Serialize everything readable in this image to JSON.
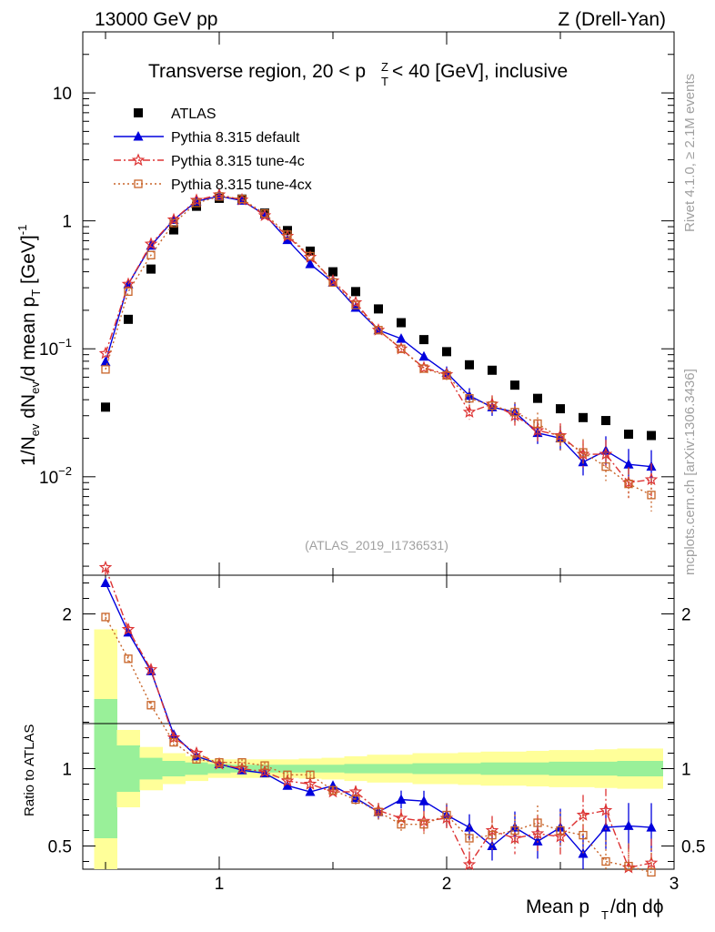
{
  "header": {
    "energy": "13000 GeV pp",
    "process": "Z (Drell-Yan)",
    "side_top": "Rivet 4.1.0, ≥ 2.1M events",
    "side_bottom": "mcplots.cern.ch [arXiv:1306.3436]",
    "analysis_id": "(ATLAS_2019_I1736531)"
  },
  "chart_data": [
    {
      "type": "line",
      "panel": "main",
      "title": "Transverse region, 20 < p_T^Z < 40 [GeV], inclusive",
      "ylabel": "1/N_ev dN_ev/d mean p_T [GeV]^-1",
      "yscale": "log",
      "xlim": [
        0.4,
        3.0
      ],
      "ylim": [
        0.0017,
        30
      ],
      "x_ticks": [
        "1",
        "2",
        "3"
      ],
      "y_ticks": [
        "10^-2",
        "10^-1",
        "1",
        "10"
      ],
      "x": [
        0.5,
        0.6,
        0.7,
        0.8,
        0.9,
        1.0,
        1.1,
        1.2,
        1.3,
        1.4,
        1.5,
        1.6,
        1.7,
        1.8,
        1.9,
        2.0,
        2.1,
        2.2,
        2.3,
        2.4,
        2.5,
        2.6,
        2.7,
        2.8,
        2.9
      ],
      "series": [
        {
          "name": "ATLAS",
          "color": "#000000",
          "marker": "square",
          "values": [
            0.035,
            0.17,
            0.42,
            0.85,
            1.3,
            1.5,
            1.48,
            1.15,
            0.84,
            0.58,
            0.4,
            0.28,
            0.205,
            0.16,
            0.118,
            0.095,
            0.075,
            0.068,
            0.052,
            0.041,
            0.034,
            0.029,
            0.0275,
            0.0215,
            0.021
          ]
        },
        {
          "name": "Pythia 8.315 default",
          "color": "#0000dd",
          "marker": "triangle",
          "dash": "",
          "values": [
            0.079,
            0.32,
            0.64,
            1.02,
            1.42,
            1.56,
            1.44,
            1.12,
            0.71,
            0.46,
            0.33,
            0.21,
            0.14,
            0.12,
            0.087,
            0.065,
            0.043,
            0.035,
            0.032,
            0.022,
            0.02,
            0.013,
            0.016,
            0.0125,
            0.012
          ]
        },
        {
          "name": "Pythia 8.315 tune-4c",
          "color": "#dd3333",
          "marker": "star",
          "dash": "8,3,2,3",
          "values": [
            0.092,
            0.32,
            0.66,
            1.02,
            1.45,
            1.6,
            1.46,
            1.1,
            0.76,
            0.52,
            0.34,
            0.23,
            0.14,
            0.1,
            0.071,
            0.063,
            0.032,
            0.037,
            0.03,
            0.023,
            0.021,
            0.015,
            0.015,
            0.009,
            0.0095
          ]
        },
        {
          "name": "Pythia 8.315 tune-4cx",
          "color": "#c86428",
          "marker": "open-square",
          "dash": "2,3",
          "values": [
            0.069,
            0.28,
            0.54,
            0.96,
            1.38,
            1.55,
            1.48,
            1.14,
            0.78,
            0.53,
            0.33,
            0.22,
            0.14,
            0.1,
            0.07,
            0.062,
            0.041,
            0.036,
            0.032,
            0.026,
            0.02,
            0.0155,
            0.012,
            0.0088,
            0.0072
          ]
        }
      ]
    },
    {
      "type": "line",
      "panel": "ratio",
      "xlabel": "Mean p_T/dη dφ",
      "ylabel": "Ratio to ATLAS",
      "xlim": [
        0.4,
        3.0
      ],
      "ylim": [
        0.35,
        2.25
      ],
      "x_ticks": [
        "1",
        "2",
        "3"
      ],
      "y_ticks": [
        "0.5",
        "1",
        "2"
      ],
      "x": [
        0.5,
        0.6,
        0.7,
        0.8,
        0.9,
        1.0,
        1.1,
        1.2,
        1.3,
        1.4,
        1.5,
        1.6,
        1.7,
        1.8,
        1.9,
        2.0,
        2.1,
        2.2,
        2.3,
        2.4,
        2.5,
        2.6,
        2.7,
        2.8,
        2.9
      ],
      "band_inner": [
        0.45,
        0.15,
        0.07,
        0.05,
        0.04,
        0.03,
        0.025,
        0.025,
        0.025,
        0.025,
        0.025,
        0.03,
        0.03,
        0.03,
        0.035,
        0.035,
        0.035,
        0.04,
        0.04,
        0.04,
        0.045,
        0.045,
        0.045,
        0.05,
        0.05
      ],
      "band_outer": [
        0.9,
        0.25,
        0.14,
        0.1,
        0.08,
        0.06,
        0.06,
        0.06,
        0.06,
        0.065,
        0.07,
        0.08,
        0.09,
        0.09,
        0.1,
        0.1,
        0.105,
        0.11,
        0.11,
        0.115,
        0.12,
        0.12,
        0.125,
        0.13,
        0.13
      ],
      "series": [
        {
          "name": "Pythia 8.315 default",
          "color": "#0000dd",
          "marker": "triangle",
          "dash": "",
          "values": [
            2.2,
            1.88,
            1.63,
            1.22,
            1.08,
            1.03,
            0.99,
            0.97,
            0.89,
            0.85,
            0.89,
            0.81,
            0.72,
            0.8,
            0.79,
            0.7,
            0.62,
            0.5,
            0.62,
            0.53,
            0.62,
            0.45,
            0.62,
            0.63,
            0.62
          ]
        },
        {
          "name": "Pythia 8.315 tune-4c",
          "color": "#dd3333",
          "marker": "star",
          "dash": "8,3,2,3",
          "values": [
            2.3,
            1.9,
            1.64,
            1.2,
            1.1,
            1.03,
            1.0,
            0.98,
            0.92,
            0.9,
            0.85,
            0.85,
            0.73,
            0.68,
            0.66,
            0.68,
            0.38,
            0.6,
            0.55,
            0.58,
            0.56,
            0.7,
            0.73,
            0.36,
            0.39
          ]
        },
        {
          "name": "Pythia 8.315 tune-4cx",
          "color": "#c86428",
          "marker": "open-square",
          "dash": "2,3",
          "values": [
            1.98,
            1.71,
            1.41,
            1.17,
            1.06,
            1.04,
            1.04,
            1.02,
            0.96,
            0.96,
            0.86,
            0.8,
            0.72,
            0.64,
            0.64,
            0.7,
            0.55,
            0.57,
            0.6,
            0.65,
            0.6,
            0.57,
            0.4,
            0.37,
            0.33
          ]
        }
      ]
    }
  ]
}
